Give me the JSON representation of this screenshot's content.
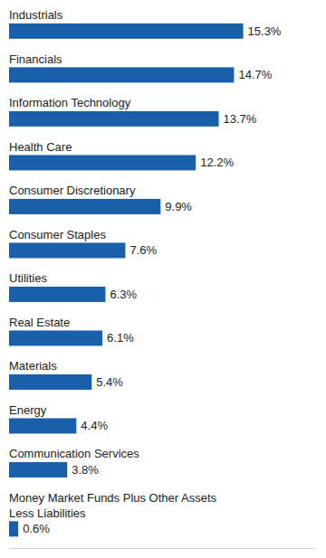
{
  "chart_data": {
    "type": "bar",
    "orientation": "horizontal",
    "categories": [
      "Industrials",
      "Financials",
      "Information Technology",
      "Health Care",
      "Consumer Discretionary",
      "Consumer Staples",
      "Utilities",
      "Real Estate",
      "Materials",
      "Energy",
      "Communication Services",
      "Money Market Funds Plus Other Assets\nLess Liabilities"
    ],
    "values": [
      15.3,
      14.7,
      13.7,
      12.2,
      9.9,
      7.6,
      6.3,
      6.1,
      5.4,
      4.4,
      3.8,
      0.6
    ],
    "value_labels": [
      "15.3%",
      "14.7%",
      "13.7%",
      "12.2%",
      "9.9%",
      "7.6%",
      "6.3%",
      "6.1%",
      "5.4%",
      "4.4%",
      "3.8%",
      "0.6%"
    ],
    "color": "#1a5faa",
    "xlim": [
      0,
      20
    ],
    "data_labels": true,
    "tick_labels": false,
    "grid": false
  }
}
